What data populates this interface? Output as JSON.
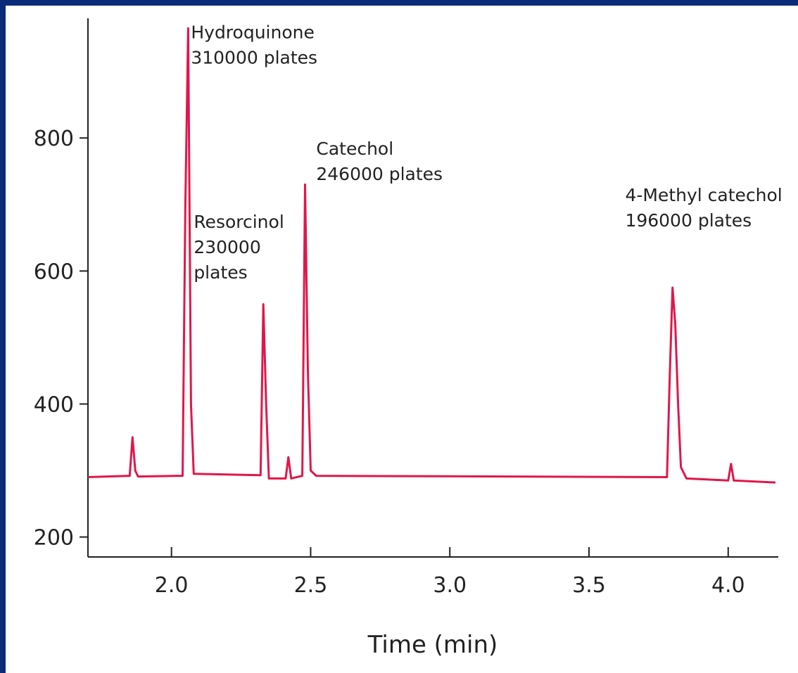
{
  "chart_data": {
    "type": "line",
    "title": "",
    "xlabel": "Time (min)",
    "ylabel": "",
    "xlim": [
      1.7,
      4.18
    ],
    "ylim": [
      170,
      980
    ],
    "x_ticks": [
      {
        "value": 2.0,
        "label": "2.0"
      },
      {
        "value": 2.5,
        "label": "2.5"
      },
      {
        "value": 3.0,
        "label": "3.0"
      },
      {
        "value": 3.5,
        "label": "3.5"
      },
      {
        "value": 4.0,
        "label": "4.0"
      }
    ],
    "y_ticks": [
      {
        "value": 200,
        "label": "200"
      },
      {
        "value": 400,
        "label": "400"
      },
      {
        "value": 600,
        "label": "600"
      },
      {
        "value": 800,
        "label": "800"
      }
    ],
    "grid": false,
    "line_color": "#e0174a",
    "series": [
      {
        "baseline": 290,
        "x": [
          1.7,
          1.85,
          1.86,
          1.87,
          1.88,
          2.04,
          2.05,
          2.06,
          2.07,
          2.08,
          2.32,
          2.33,
          2.34,
          2.35,
          2.41,
          2.42,
          2.43,
          2.47,
          2.48,
          2.49,
          2.5,
          2.52,
          3.78,
          3.79,
          3.8,
          3.81,
          3.82,
          3.83,
          3.85,
          4.0,
          4.01,
          4.02,
          4.17
        ],
        "y": [
          290,
          292,
          350,
          300,
          291,
          292,
          700,
          965,
          400,
          295,
          293,
          550,
          400,
          288,
          288,
          320,
          288,
          292,
          730,
          450,
          300,
          292,
          290,
          440,
          575,
          520,
          400,
          305,
          288,
          285,
          310,
          285,
          282
        ]
      }
    ],
    "annotations": [
      {
        "lines": [
          "Hydroquinone",
          "310000 plates"
        ],
        "x": 2.07,
        "y": 950
      },
      {
        "lines": [
          "Resorcinol",
          "230000",
          "plates"
        ],
        "x": 2.08,
        "y": 665
      },
      {
        "lines": [
          "Catechol",
          "246000 plates"
        ],
        "x": 2.52,
        "y": 775
      },
      {
        "lines": [
          "4-Methyl catechol",
          "196000 plates"
        ],
        "x": 3.63,
        "y": 705
      }
    ]
  }
}
